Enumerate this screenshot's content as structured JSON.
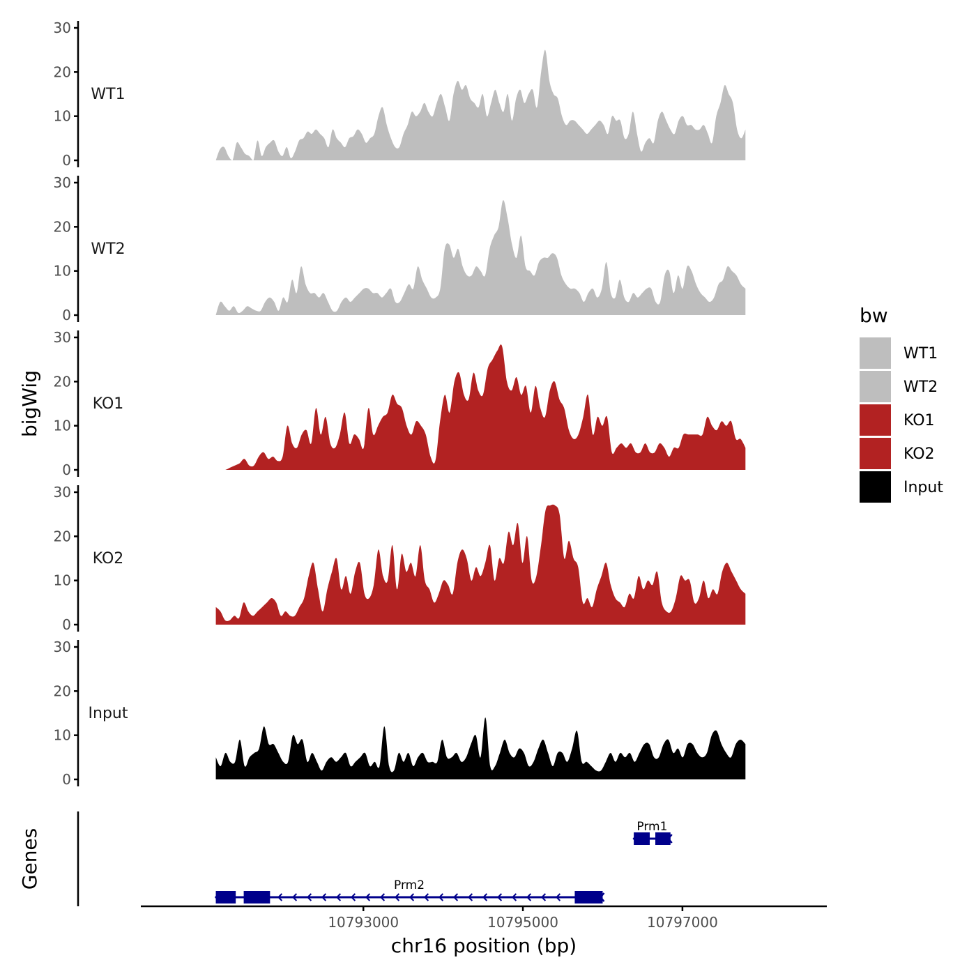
{
  "chart_data": {
    "type": "area",
    "ylabel": "bigWig",
    "xlabel": "chr16 position (bp)",
    "ylim": [
      0,
      30
    ],
    "y_ticks": [
      "0",
      "10",
      "20",
      "30"
    ],
    "xlim": [
      10790210,
      10798810
    ],
    "x_tick_values": [
      10793000,
      10795000,
      10797000
    ],
    "x_tick_labels": [
      "10793000",
      "10795000",
      "10797000"
    ],
    "data_range": [
      10791150,
      10797790
    ],
    "legend": {
      "title": "bw",
      "position": "right",
      "entries": [
        {
          "label": "WT1",
          "color": "#bebebe"
        },
        {
          "label": "WT2",
          "color": "#bebebe"
        },
        {
          "label": "KO1",
          "color": "#b22222"
        },
        {
          "label": "KO2",
          "color": "#b22222"
        },
        {
          "label": "Input",
          "color": "#000000"
        }
      ]
    },
    "series": [
      {
        "name": "WT1",
        "color": "#bebebe",
        "values": [
          0,
          2.5,
          3,
          1,
          0,
          4,
          3,
          1.5,
          1,
          0,
          4.5,
          1,
          3,
          4,
          4.5,
          2,
          1,
          3,
          0.5,
          2,
          4.5,
          5,
          6.5,
          6,
          7,
          6,
          5,
          3,
          7,
          5,
          4,
          3,
          5,
          5.5,
          7,
          6,
          4,
          5,
          6,
          10,
          12,
          8,
          5,
          3,
          3,
          6,
          8,
          11,
          10,
          11,
          13,
          11,
          10,
          13,
          15,
          12,
          9,
          15,
          18,
          16,
          17,
          14,
          13,
          12,
          15,
          10,
          13,
          16,
          13,
          11,
          15,
          9,
          14,
          16,
          13,
          15,
          16,
          12,
          20,
          25,
          18,
          15,
          14,
          10,
          8,
          9,
          9,
          8,
          7,
          6,
          7,
          8,
          9,
          8,
          6,
          10,
          9,
          9,
          5,
          6,
          11,
          6,
          2,
          4,
          5,
          4,
          9,
          11,
          9,
          7,
          6,
          9,
          10,
          8,
          8,
          7,
          7,
          8,
          6,
          4,
          10,
          13,
          17,
          15,
          13,
          7,
          5,
          7
        ]
      },
      {
        "name": "WT2",
        "color": "#bebebe",
        "values": [
          0,
          3,
          2,
          1,
          2,
          0.5,
          1,
          2,
          1.5,
          1,
          1,
          3,
          4,
          3,
          1,
          4,
          3,
          8,
          5,
          11,
          7,
          5,
          5,
          4,
          5,
          3,
          1,
          1,
          3,
          4,
          3,
          4,
          5,
          6,
          6,
          5,
          5,
          4,
          5,
          6,
          3,
          3,
          5,
          7,
          6,
          11,
          8,
          6,
          4,
          4,
          6,
          15,
          16,
          13,
          15,
          11,
          9,
          9,
          11,
          10,
          9,
          15,
          18,
          20,
          26,
          22,
          16,
          13,
          18,
          11,
          10,
          9,
          12,
          13,
          13,
          14,
          13,
          9,
          7,
          6,
          6,
          5,
          3,
          5,
          6,
          4,
          6,
          12,
          5,
          4,
          8,
          4,
          3,
          5,
          4,
          5,
          6,
          6,
          3,
          3,
          9,
          10,
          5,
          9,
          6,
          11,
          10,
          7,
          5,
          4,
          3,
          4,
          7,
          8,
          11,
          10,
          9,
          7,
          6
        ]
      },
      {
        "name": "KO1",
        "color": "#b22222",
        "values": [
          0,
          0,
          0,
          0.5,
          1,
          1.5,
          2.5,
          1,
          1,
          3,
          4,
          2.5,
          3,
          2,
          3,
          10,
          6,
          5,
          8,
          9,
          6,
          14,
          8,
          12,
          6,
          5,
          8,
          13,
          6,
          8,
          7,
          5,
          14,
          8,
          10,
          12,
          13,
          17,
          15,
          14,
          10,
          8,
          11,
          10,
          8,
          3,
          2,
          11,
          17,
          13,
          20,
          22,
          17,
          16,
          22,
          18,
          17,
          23,
          25,
          27,
          28,
          20,
          18,
          21,
          17,
          19,
          13,
          19,
          14,
          12,
          18,
          20,
          16,
          14,
          9,
          7,
          8,
          12,
          17,
          8,
          12,
          10,
          12,
          4,
          5,
          6,
          5,
          6,
          4,
          4,
          6,
          4,
          4,
          6,
          5,
          3,
          5,
          5,
          8,
          8,
          8,
          8,
          8,
          12,
          10,
          9,
          11,
          10,
          11,
          7,
          7,
          5
        ]
      },
      {
        "name": "KO2",
        "color": "#b22222",
        "values": [
          4,
          3,
          1,
          1,
          2,
          1.5,
          5,
          3,
          2,
          3,
          4,
          5,
          6,
          5,
          2,
          3,
          2,
          2,
          4,
          6,
          11,
          14,
          8,
          3,
          8,
          12,
          15,
          8,
          11,
          7,
          12,
          14,
          7,
          6,
          9,
          17,
          11,
          10,
          18,
          8,
          16,
          12,
          14,
          11,
          18,
          10,
          8,
          5,
          7,
          10,
          9,
          7,
          14,
          17,
          15,
          10,
          13,
          11,
          14,
          18,
          10,
          15,
          14,
          21,
          18,
          23,
          14,
          20,
          10,
          11,
          18,
          26,
          27,
          27,
          25,
          15,
          19,
          15,
          13,
          5,
          6,
          4,
          8,
          11,
          14,
          9,
          6,
          5,
          4,
          7,
          6,
          11,
          8,
          10,
          9,
          12,
          5,
          3,
          3,
          6,
          11,
          10,
          10,
          5,
          6,
          10,
          6,
          8,
          7,
          12,
          14,
          12,
          10,
          8,
          7
        ]
      },
      {
        "name": "Input",
        "color": "#000000",
        "values": [
          5,
          3,
          6,
          4,
          4,
          9,
          3,
          5,
          6,
          7,
          12,
          8,
          8,
          6,
          4,
          4,
          10,
          8,
          9,
          4,
          6,
          4,
          2,
          4,
          5,
          4,
          5,
          6,
          3,
          4,
          5,
          6,
          3,
          4,
          3,
          12,
          3,
          2,
          6,
          4,
          6,
          3,
          5,
          6,
          4,
          4,
          4,
          9,
          5,
          5,
          6,
          4,
          5,
          8,
          10,
          5,
          14,
          3,
          3,
          6,
          9,
          6,
          5,
          7,
          6,
          3,
          4,
          7,
          9,
          6,
          3,
          6,
          6,
          4,
          7,
          11,
          4,
          4,
          3,
          2,
          2,
          4,
          6,
          4,
          6,
          5,
          6,
          4,
          6,
          8,
          8,
          5,
          5,
          8,
          9,
          6,
          7,
          5,
          8,
          8,
          6,
          5,
          6,
          10,
          11,
          8,
          6,
          5,
          8,
          9,
          8
        ]
      }
    ],
    "genes": [
      {
        "name": "Prm1",
        "strand": "-",
        "start": 10796390,
        "end": 10796850,
        "exons": [
          [
            10796390,
            10796590
          ],
          [
            10796660,
            10796850
          ]
        ]
      },
      {
        "name": "Prm2",
        "strand": "-",
        "start": 10791150,
        "end": 10796000,
        "exons": [
          [
            10791150,
            10791400
          ],
          [
            10791500,
            10791830
          ],
          [
            10795650,
            10796000
          ]
        ]
      }
    ],
    "genes_label": "Genes"
  }
}
